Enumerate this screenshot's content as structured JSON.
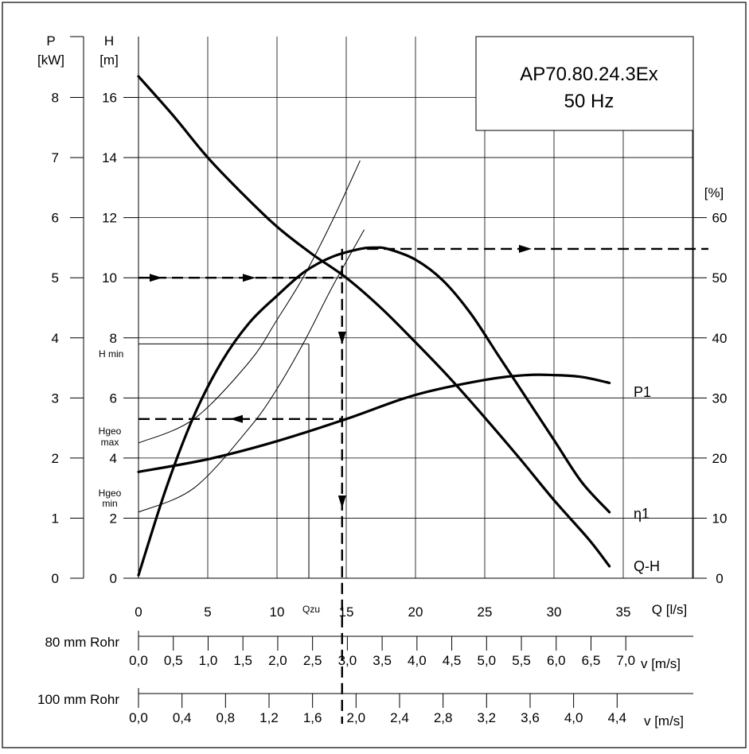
{
  "chart_data": {
    "type": "line",
    "title": "AP70.80.24.3Ex",
    "subtitle": "50 Hz",
    "xlabel": "Q [l/s]",
    "xlim": [
      0,
      40
    ],
    "x_ticks": [
      "0",
      "5",
      "10",
      "15",
      "20",
      "25",
      "30",
      "35"
    ],
    "axes": {
      "power": {
        "label_top": "P",
        "label_unit": "[kW]",
        "lim": [
          0,
          9
        ],
        "ticks": [
          "0",
          "1",
          "2",
          "3",
          "4",
          "5",
          "6",
          "7",
          "8"
        ]
      },
      "head": {
        "label_top": "H",
        "label_unit": "[m]",
        "lim": [
          0,
          18
        ],
        "ticks": [
          "0",
          "2",
          "4",
          "6",
          "8",
          "10",
          "12",
          "14",
          "16"
        ]
      },
      "efficiency": {
        "label_unit": "[%]",
        "lim": [
          0,
          90
        ],
        "ticks": [
          "0",
          "10",
          "20",
          "30",
          "40",
          "50",
          "60"
        ]
      }
    },
    "series": [
      {
        "name": "Q-H",
        "axis": "head",
        "x": [
          0,
          2.5,
          5,
          7.5,
          10,
          12.5,
          15,
          17.5,
          20,
          22.5,
          25,
          27.5,
          30,
          32.5,
          34
        ],
        "y": [
          16.7,
          15.4,
          14.0,
          12.8,
          11.7,
          10.8,
          10.0,
          9.0,
          7.85,
          6.65,
          5.35,
          4.0,
          2.6,
          1.3,
          0.4
        ]
      },
      {
        "name": "η1",
        "axis": "efficiency",
        "x": [
          0,
          2,
          4,
          6,
          8,
          10,
          12,
          14,
          16,
          17,
          18,
          20,
          22,
          24,
          26,
          28,
          30,
          32,
          34
        ],
        "y": [
          0.5,
          15,
          27,
          36,
          42.5,
          47,
          51,
          53.5,
          54.8,
          55,
          54.8,
          53,
          49.5,
          44,
          37,
          30,
          23,
          16,
          11
        ]
      },
      {
        "name": "P1",
        "axis": "power",
        "x": [
          0,
          5,
          10,
          15,
          20,
          25,
          28,
          30,
          32,
          34
        ],
        "y": [
          1.77,
          1.98,
          2.28,
          2.65,
          3.05,
          3.3,
          3.38,
          3.38,
          3.35,
          3.25
        ]
      }
    ],
    "system_curves": [
      {
        "x": [
          0,
          4,
          8,
          10,
          12,
          14,
          16
        ],
        "y": [
          4.5,
          5.3,
          7.2,
          8.6,
          10.1,
          11.9,
          13.9
        ]
      },
      {
        "x": [
          0,
          4,
          8,
          10,
          12,
          14,
          16.3
        ],
        "y": [
          2.2,
          3.0,
          5.0,
          6.3,
          7.9,
          9.7,
          11.6
        ]
      }
    ],
    "annotations": {
      "hmin": "H min",
      "hmin_value": 7.8,
      "hgeo_max": [
        "Hgeo",
        "max"
      ],
      "hgeo_max_value": 4.5,
      "hgeo_min": [
        "Hgeo",
        "min"
      ],
      "hgeo_min_value": 2.2,
      "qzu": "Qzu",
      "qzu_value": 12.3,
      "operating_q": 14.7,
      "operating_h": 10.0,
      "operating_eta": 54.8,
      "operating_p": 2.65
    },
    "pipes": [
      {
        "label": "80 mm Rohr",
        "unit": "v [m/s]",
        "ticks": [
          "0,0",
          "0,5",
          "1,0",
          "1,5",
          "2,0",
          "2,5",
          "3,0",
          "3,5",
          "4,0",
          "4,5",
          "5,0",
          "5,5",
          "6,0",
          "6,5",
          "7,0"
        ],
        "q_per_unit": 5.0265
      },
      {
        "label": "100 mm Rohr",
        "unit": "v [m/s]",
        "ticks": [
          "0,0",
          "0,4",
          "0,8",
          "1,2",
          "1,6",
          "2,0",
          "2,4",
          "2,8",
          "3,2",
          "3,6",
          "4,0",
          "4,4"
        ],
        "q_per_unit": 7.854
      }
    ],
    "grid": true
  }
}
